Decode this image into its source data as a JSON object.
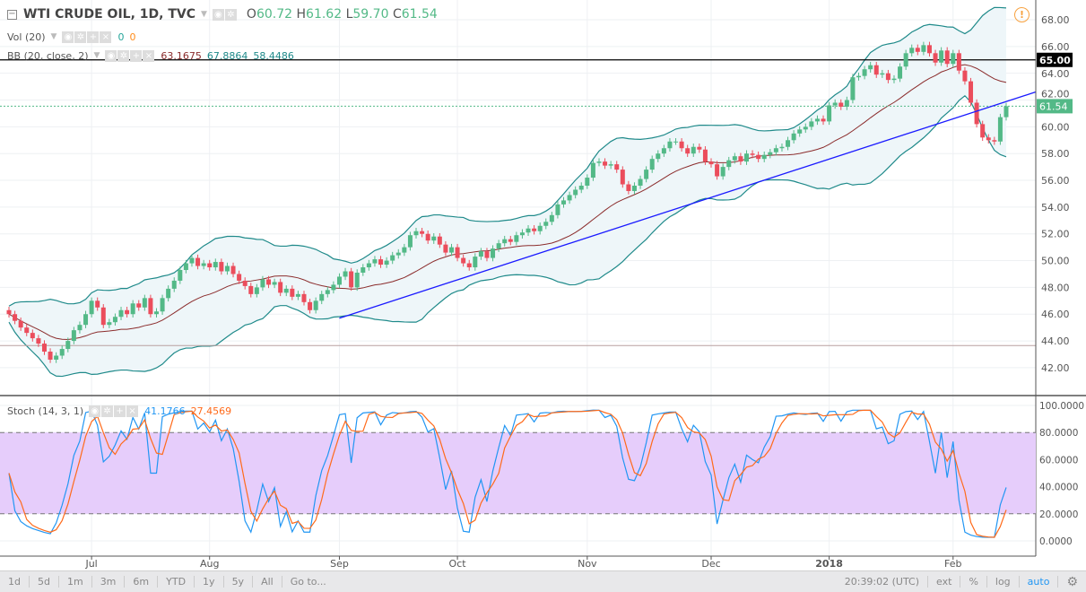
{
  "header": {
    "title": "WTI CRUDE OIL, 1D, TVC",
    "ohlc": {
      "o_label": "O",
      "o": "60.72",
      "h_label": "H",
      "h": "61.62",
      "l_label": "L",
      "l": "59.70",
      "c_label": "C",
      "c": "61.54"
    },
    "vol": {
      "label": "Vol (20)",
      "v1": "0",
      "v2": "0"
    },
    "bb": {
      "label": "BB (20, close, 2)",
      "basis": "63.1675",
      "upper": "67.8864",
      "lower": "58.4486"
    },
    "stoch": {
      "label": "Stoch (14, 3, 1)",
      "k": "41.1766",
      "d": "27.4569"
    }
  },
  "chart_data": {
    "type": "candlestick",
    "symbol": "WTI CRUDE OIL",
    "interval": "1D",
    "ylim": [
      41,
      69
    ],
    "price_ticks": [
      "42.00",
      "44.00",
      "46.00",
      "48.00",
      "50.00",
      "52.00",
      "54.00",
      "56.00",
      "58.00",
      "60.00",
      "62.00",
      "64.00",
      "66.00",
      "68.00"
    ],
    "month_labels": [
      {
        "label": "Jul",
        "bar": 14
      },
      {
        "label": "Aug",
        "bar": 34
      },
      {
        "label": "Sep",
        "bar": 56
      },
      {
        "label": "Oct",
        "bar": 76
      },
      {
        "label": "Nov",
        "bar": 98
      },
      {
        "label": "Dec",
        "bar": 119
      },
      {
        "label": "2018",
        "bar": 139
      },
      {
        "label": "Feb",
        "bar": 160
      }
    ],
    "closes": [
      46.0,
      45.5,
      45.0,
      44.6,
      44.2,
      43.8,
      43.2,
      42.6,
      42.9,
      43.4,
      44.0,
      44.8,
      45.2,
      46.0,
      47.0,
      46.5,
      45.2,
      45.4,
      45.8,
      46.3,
      46.0,
      46.8,
      46.5,
      47.2,
      46.0,
      46.2,
      47.2,
      47.9,
      48.5,
      49.3,
      49.8,
      50.2,
      49.6,
      49.8,
      49.5,
      49.9,
      49.2,
      49.6,
      49.0,
      48.5,
      48.1,
      47.5,
      48.0,
      48.6,
      48.2,
      48.4,
      47.6,
      47.9,
      47.3,
      47.5,
      46.9,
      46.3,
      47.0,
      47.5,
      47.8,
      48.2,
      48.8,
      49.2,
      48.0,
      49.1,
      49.5,
      49.8,
      50.1,
      49.7,
      50.0,
      50.4,
      50.6,
      51.0,
      51.9,
      52.2,
      52.0,
      51.5,
      51.8,
      51.2,
      50.6,
      51.0,
      50.2,
      49.8,
      49.5,
      50.3,
      50.7,
      50.2,
      50.9,
      51.3,
      51.6,
      51.4,
      51.9,
      52.1,
      52.4,
      52.2,
      52.6,
      52.9,
      53.4,
      54.2,
      54.5,
      54.9,
      55.3,
      55.6,
      56.2,
      57.3,
      57.4,
      57.1,
      57.2,
      56.8,
      55.7,
      55.2,
      55.6,
      56.1,
      56.8,
      57.6,
      58.0,
      58.4,
      58.9,
      58.9,
      58.4,
      58.0,
      58.5,
      58.3,
      57.4,
      57.2,
      56.3,
      57.0,
      57.5,
      57.8,
      57.4,
      58.0,
      57.9,
      57.6,
      57.9,
      58.1,
      58.4,
      58.5,
      59.0,
      59.5,
      59.8,
      60.0,
      60.4,
      60.6,
      60.4,
      61.6,
      61.8,
      61.5,
      62.0,
      63.7,
      63.8,
      64.3,
      64.6,
      63.9,
      64.0,
      63.5,
      63.6,
      64.5,
      65.5,
      65.9,
      65.6,
      66.1,
      65.5,
      64.8,
      65.7,
      64.7,
      65.5,
      64.2,
      63.4,
      61.8,
      60.2,
      59.2,
      59.0,
      58.9,
      60.72,
      61.54
    ],
    "last_price": "61.54",
    "horizontal_line": {
      "price": 65.0,
      "label": "65.00"
    },
    "support_line": {
      "price": 43.65
    },
    "trendline": {
      "from_bar": 56,
      "from_price": 45.7,
      "to_price": 62.6
    },
    "indicators": {
      "bollinger": {
        "length": 20,
        "mult": 2
      },
      "stoch": {
        "k": 14,
        "d": 3
      }
    },
    "stoch_ticks": [
      "0.0000",
      "20.0000",
      "40.0000",
      "60.0000",
      "80.0000",
      "100.0000"
    ],
    "stoch_band": [
      20,
      80
    ],
    "colors": {
      "up": "#53b987",
      "down": "#eb4d5c",
      "bb": "#1f8a8a",
      "bb_fill": "#eef6f9",
      "basis": "#8b2c2c",
      "stoch_k": "#2196f3",
      "stoch_d": "#ff6a1a",
      "band_fill": "#e6cdfb",
      "trendline": "#1a1aff"
    }
  },
  "toolbar": {
    "ranges": [
      "1d",
      "5d",
      "1m",
      "3m",
      "6m",
      "YTD",
      "1y",
      "5y",
      "All"
    ],
    "goto": "Go to...",
    "time": "20:39:02 (UTC)",
    "ext": "ext",
    "percent": "%",
    "log": "log",
    "auto": "auto"
  }
}
